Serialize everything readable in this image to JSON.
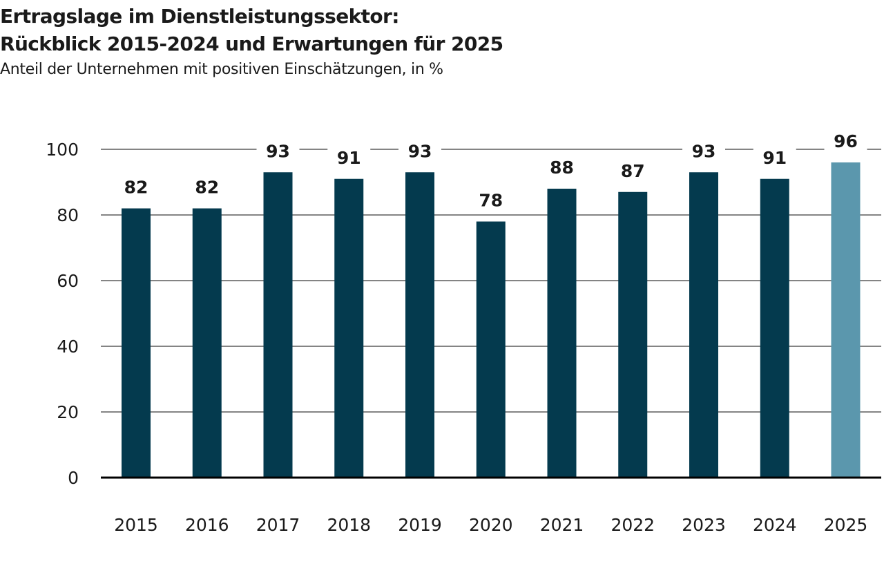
{
  "chart_data": {
    "type": "bar",
    "title_line1": "Ertragslage im Dienstleistungssektor:",
    "title_line2": "Rückblick 2015-2024 und Erwartungen für 2025",
    "subtitle": "Anteil der Unternehmen mit positiven Einschätzungen, in %",
    "categories": [
      "2015",
      "2016",
      "2017",
      "2018",
      "2019",
      "2020",
      "2021",
      "2022",
      "2023",
      "2024",
      "2025"
    ],
    "values": [
      82,
      82,
      93,
      91,
      93,
      78,
      88,
      87,
      93,
      91,
      96
    ],
    "value_labels": [
      "82",
      "82",
      "93",
      "91",
      "93",
      "78",
      "88",
      "87",
      "93",
      "91",
      "96"
    ],
    "ylim": [
      0,
      100
    ],
    "yticks": [
      0,
      20,
      40,
      60,
      80,
      100
    ],
    "ytick_labels": [
      "0",
      "20",
      "40",
      "60",
      "80",
      "100"
    ],
    "grid": true,
    "colors": {
      "actual": "#043a4e",
      "expectation": "#5b97ad",
      "grid": "#3a3a3a",
      "axis": "#000000"
    },
    "highlight_last": true
  }
}
